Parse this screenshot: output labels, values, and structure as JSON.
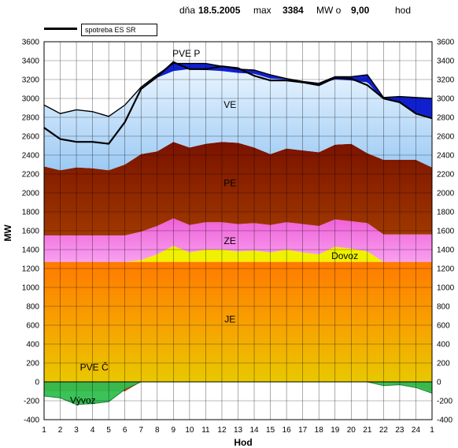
{
  "header": {
    "day_label": "dňa",
    "date": "18.5.2005",
    "max_label": "max",
    "max_value": "3384",
    "mw_label": "MW o",
    "hour_value": "9,00",
    "hod_label": "hod"
  },
  "legend": {
    "line_label": "spotreba ES SR"
  },
  "chart_data": {
    "type": "area",
    "xlabel": "Hod",
    "ylabel": "MW",
    "ylim": [
      -400,
      3600
    ],
    "yticks": [
      -400,
      -200,
      0,
      200,
      400,
      600,
      800,
      1000,
      1200,
      1400,
      1600,
      1800,
      2000,
      2200,
      2400,
      2600,
      2800,
      3000,
      3200,
      3400,
      3600
    ],
    "xtick_labels": [
      "1",
      "2",
      "3",
      "4",
      "5",
      "6",
      "7",
      "8",
      "9",
      "10",
      "11",
      "12",
      "13",
      "14",
      "15",
      "16",
      "17",
      "18",
      "19",
      "20",
      "21",
      "22",
      "23",
      "24",
      "1"
    ],
    "grid": true,
    "stacked_series": [
      {
        "name": "JE",
        "color": "#f2a000",
        "values": [
          1270,
          1270,
          1270,
          1270,
          1270,
          1270,
          1270,
          1270,
          1270,
          1270,
          1270,
          1270,
          1270,
          1270,
          1270,
          1270,
          1270,
          1270,
          1270,
          1270,
          1270,
          1270,
          1270,
          1270,
          1270
        ]
      },
      {
        "name": "Dovoz",
        "color": "#f0f000",
        "values": [
          0,
          0,
          0,
          0,
          0,
          0,
          20,
          80,
          170,
          100,
          130,
          130,
          110,
          120,
          100,
          130,
          100,
          80,
          160,
          140,
          110,
          0,
          0,
          0,
          0
        ]
      },
      {
        "name": "ZE",
        "color": "#f080e0",
        "values": [
          280,
          280,
          280,
          280,
          280,
          280,
          300,
          300,
          290,
          290,
          290,
          290,
          290,
          290,
          290,
          290,
          300,
          300,
          290,
          290,
          300,
          290,
          290,
          290,
          290
        ]
      },
      {
        "name": "PE",
        "color": "#8b1a00",
        "values": [
          730,
          690,
          720,
          710,
          690,
          750,
          820,
          790,
          810,
          820,
          830,
          850,
          860,
          800,
          750,
          780,
          780,
          780,
          790,
          820,
          740,
          790,
          790,
          790,
          710
        ]
      },
      {
        "name": "VE",
        "color": "#b0d8f8",
        "values": [
          650,
          600,
          610,
          600,
          570,
          630,
          710,
          780,
          750,
          830,
          780,
          750,
          740,
          780,
          800,
          730,
          720,
          720,
          690,
          670,
          750,
          640,
          600,
          500,
          530
        ]
      },
      {
        "name": "PVE P",
        "color": "#1020d0",
        "values": [
          0,
          0,
          0,
          0,
          0,
          0,
          0,
          30,
          80,
          60,
          70,
          50,
          40,
          40,
          40,
          10,
          10,
          10,
          30,
          40,
          80,
          20,
          70,
          160,
          200
        ]
      }
    ],
    "below_zero_series": [
      {
        "name": "PVE Č",
        "color": "#e02000",
        "values": [
          -100,
          -100,
          -100,
          -100,
          -100,
          -100,
          0,
          0,
          0,
          0,
          0,
          0,
          0,
          0,
          0,
          0,
          0,
          0,
          0,
          0,
          0,
          0,
          -30,
          -40,
          -100
        ]
      },
      {
        "name": "Vývoz",
        "color": "#30c050",
        "values": [
          -150,
          -170,
          -240,
          -230,
          -210,
          -80,
          0,
          0,
          0,
          0,
          0,
          0,
          0,
          0,
          0,
          0,
          0,
          0,
          0,
          0,
          0,
          -40,
          -30,
          -60,
          -120
        ]
      }
    ],
    "line_series": {
      "name": "spotreba ES SR",
      "color": "#000000",
      "values": [
        2690,
        2570,
        2540,
        2540,
        2520,
        2750,
        3100,
        3230,
        3384,
        3310,
        3310,
        3340,
        3320,
        3240,
        3190,
        3190,
        3170,
        3140,
        3220,
        3210,
        3140,
        3000,
        2960,
        2840,
        2790
      ]
    },
    "labels": [
      {
        "text": "PVE P",
        "x": 9.8,
        "y": 3440
      },
      {
        "text": "VE",
        "x": 12.5,
        "y": 2900
      },
      {
        "text": "PE",
        "x": 12.5,
        "y": 2070
      },
      {
        "text": "ZE",
        "x": 12.5,
        "y": 1460
      },
      {
        "text": "Dovoz",
        "x": 19.6,
        "y": 1300
      },
      {
        "text": "JE",
        "x": 12.5,
        "y": 630
      },
      {
        "text": "PVE Č",
        "x": 4.1,
        "y": 120
      },
      {
        "text": "Vývoz",
        "x": 3.4,
        "y": -230
      }
    ]
  }
}
